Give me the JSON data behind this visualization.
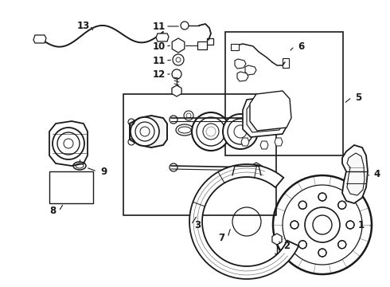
{
  "bg_color": "#ffffff",
  "line_color": "#1a1a1a",
  "fig_width": 4.9,
  "fig_height": 3.6,
  "dpi": 100,
  "img_extent": [
    0,
    490,
    0,
    360
  ]
}
